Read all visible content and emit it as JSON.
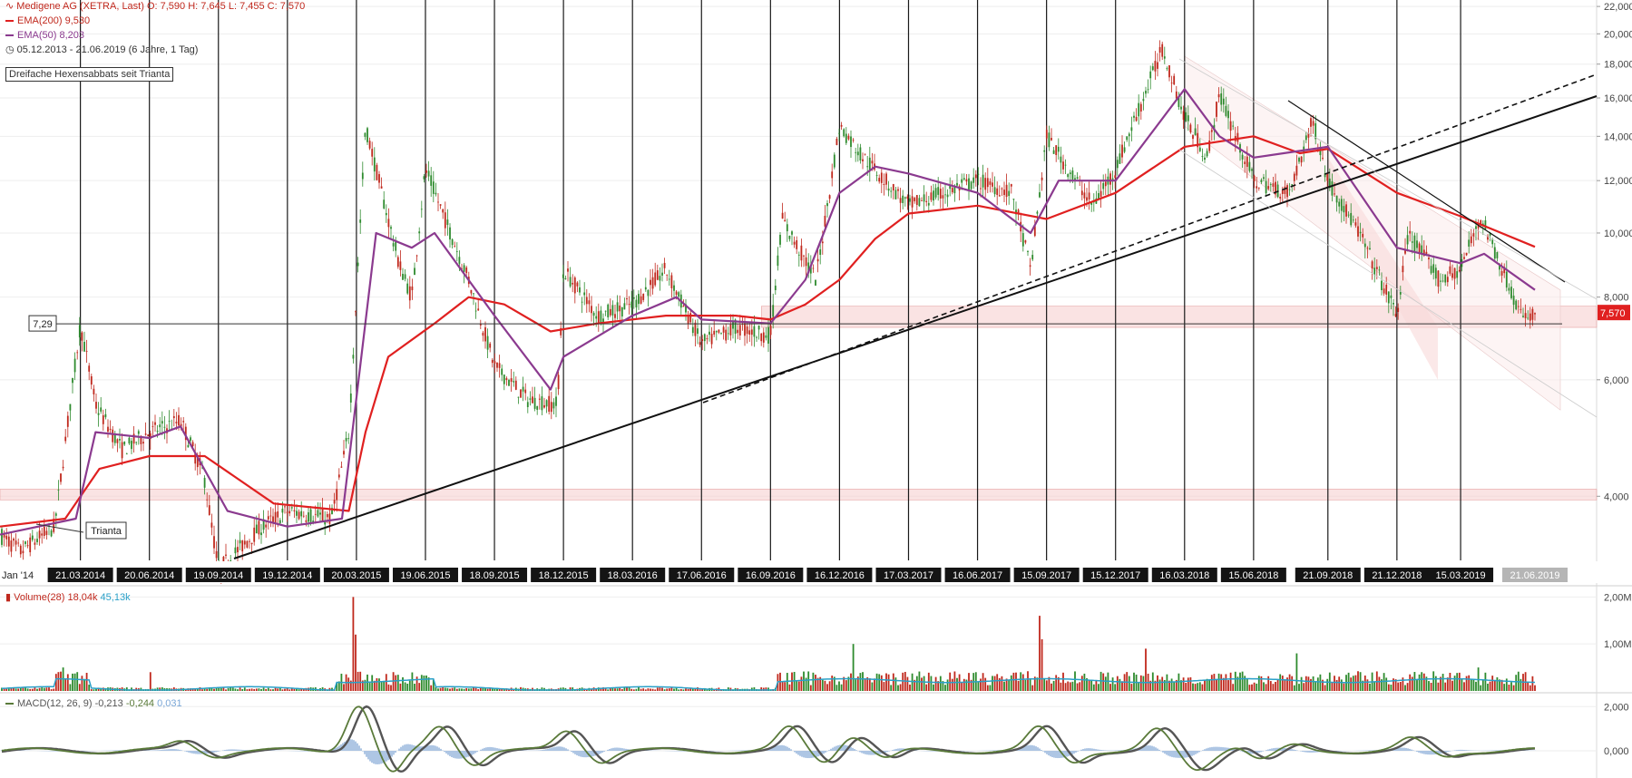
{
  "header": {
    "instrument": "Medigene AG (XETRA, Last)",
    "ohlc": "O: 7,590  H: 7,645  L: 7,455  C: 7,570",
    "ema200_label": "EMA(200)",
    "ema200_value": "9,530",
    "ema50_label": "EMA(50)",
    "ema50_value": "8,203",
    "range": "05.12.2013 - 21.06.2019",
    "range_note": "(6 Jahre, 1 Tag)"
  },
  "annotation": "Dreifache Hexensabbats seit Trianta",
  "trianta_label": "Trianta",
  "level_label": "7,29",
  "last_price_label": "7,570",
  "colors": {
    "ema200": "#e02020",
    "ema50": "#8b3a8f",
    "up": "#2e8b2e",
    "down": "#c0281d",
    "zone": "#f6cccc",
    "volume_avg": "#2aa0c8",
    "macd": "#5a7a3a",
    "signal": "#555555",
    "histogram": "#9ab8dd"
  },
  "chart_data": {
    "type": "line",
    "title": "Medigene AG (XETRA, Last)",
    "y_axis": {
      "scale": "log",
      "ticks": [
        "22,000",
        "20,000",
        "18,000",
        "16,000",
        "14,000",
        "12,000",
        "10,000",
        "8,000",
        "6,000",
        "4,000"
      ],
      "tick_values": [
        22,
        20,
        18,
        16,
        14,
        12,
        10,
        8,
        6,
        4
      ],
      "ylim": [
        3.2,
        22.5
      ]
    },
    "x_axis": {
      "first_label": "Jan '14",
      "last_label": "21.06.2019",
      "dates": [
        "21.03.2014",
        "20.06.2014",
        "19.09.2014",
        "19.12.2014",
        "20.03.2015",
        "19.06.2015",
        "18.09.2015",
        "18.12.2015",
        "18.03.2016",
        "17.06.2016",
        "16.09.2016",
        "16.12.2016",
        "17.03.2017",
        "16.06.2017",
        "15.09.2017",
        "15.12.2017",
        "16.03.2018",
        "15.06.2018",
        "21.09.2018",
        "21.12.2018",
        "15.03.2019"
      ]
    },
    "price_points": [
      [
        "05.12.2013",
        3.5
      ],
      [
        "01.01.2014",
        3.3
      ],
      [
        "15.02.2014",
        3.6
      ],
      [
        "21.03.2014",
        7.29
      ],
      [
        "10.04.2014",
        5.5
      ],
      [
        "15.05.2014",
        4.7
      ],
      [
        "20.06.2014",
        5.0
      ],
      [
        "31.07.2014",
        5.2
      ],
      [
        "31.08.2014",
        4.3
      ],
      [
        "19.09.2014",
        3.1
      ],
      [
        "15.11.2014",
        3.6
      ],
      [
        "19.12.2014",
        3.8
      ],
      [
        "15.02.2015",
        3.7
      ],
      [
        "10.03.2015",
        5.0
      ],
      [
        "01.04.2015",
        14.5
      ],
      [
        "15.05.2015",
        9.0
      ],
      [
        "01.06.2015",
        8.0
      ],
      [
        "19.06.2015",
        12.5
      ],
      [
        "15.08.2015",
        8.5
      ],
      [
        "18.09.2015",
        6.3
      ],
      [
        "01.11.2015",
        5.6
      ],
      [
        "10.12.2015",
        5.5
      ],
      [
        "18.12.2015",
        8.8
      ],
      [
        "01.02.2016",
        7.5
      ],
      [
        "18.03.2016",
        7.8
      ],
      [
        "01.05.2016",
        8.8
      ],
      [
        "17.06.2016",
        6.8
      ],
      [
        "01.08.2016",
        7.2
      ],
      [
        "16.09.2016",
        7.0
      ],
      [
        "01.10.2016",
        10.5
      ],
      [
        "15.11.2016",
        8.5
      ],
      [
        "16.12.2016",
        14.5
      ],
      [
        "17.01.2017",
        13.0
      ],
      [
        "17.03.2017",
        11.0
      ],
      [
        "16.06.2017",
        12.0
      ],
      [
        "01.08.2017",
        11.5
      ],
      [
        "25.08.2017",
        8.8
      ],
      [
        "15.09.2017",
        14.0
      ],
      [
        "15.11.2017",
        11.0
      ],
      [
        "15.12.2017",
        12.5
      ],
      [
        "15.02.2018",
        19.0
      ],
      [
        "16.03.2018",
        15.0
      ],
      [
        "15.04.2018",
        13.0
      ],
      [
        "01.05.2018",
        16.2
      ],
      [
        "15.06.2018",
        12.0
      ],
      [
        "01.08.2018",
        11.5
      ],
      [
        "01.09.2018",
        14.8
      ],
      [
        "21.09.2018",
        12.0
      ],
      [
        "01.11.2018",
        10.0
      ],
      [
        "21.12.2018",
        7.5
      ],
      [
        "05.01.2019",
        10.0
      ],
      [
        "15.02.2019",
        8.5
      ],
      [
        "15.03.2019",
        8.8
      ],
      [
        "10.04.2019",
        10.6
      ],
      [
        "15.05.2019",
        8.5
      ],
      [
        "05.06.2019",
        7.4
      ],
      [
        "21.06.2019",
        7.57
      ]
    ],
    "series": [
      {
        "name": "EMA(200)",
        "points": [
          [
            "05.12.2013",
            3.6
          ],
          [
            "01.03.2014",
            3.7
          ],
          [
            "15.04.2014",
            4.4
          ],
          [
            "20.06.2014",
            4.6
          ],
          [
            "01.09.2014",
            4.6
          ],
          [
            "01.12.2014",
            3.9
          ],
          [
            "10.03.2015",
            3.8
          ],
          [
            "01.04.2015",
            5.0
          ],
          [
            "01.05.2015",
            6.5
          ],
          [
            "01.07.2015",
            7.3
          ],
          [
            "15.08.2015",
            8.0
          ],
          [
            "01.10.2015",
            7.8
          ],
          [
            "01.12.2015",
            7.1
          ],
          [
            "01.02.2016",
            7.3
          ],
          [
            "01.05.2016",
            7.5
          ],
          [
            "01.08.2016",
            7.5
          ],
          [
            "16.09.2016",
            7.4
          ],
          [
            "01.11.2016",
            7.8
          ],
          [
            "16.12.2016",
            8.5
          ],
          [
            "01.02.2017",
            9.8
          ],
          [
            "17.03.2017",
            10.7
          ],
          [
            "16.06.2017",
            11.0
          ],
          [
            "15.09.2017",
            10.5
          ],
          [
            "15.12.2017",
            11.5
          ],
          [
            "16.03.2018",
            13.5
          ],
          [
            "15.06.2018",
            14.0
          ],
          [
            "15.08.2018",
            13.2
          ],
          [
            "21.09.2018",
            13.4
          ],
          [
            "21.12.2018",
            11.5
          ],
          [
            "15.03.2019",
            10.6
          ],
          [
            "21.06.2019",
            9.53
          ]
        ]
      },
      {
        "name": "EMA(50)",
        "points": [
          [
            "05.12.2013",
            3.5
          ],
          [
            "15.03.2014",
            3.7
          ],
          [
            "10.04.2014",
            5.0
          ],
          [
            "20.06.2014",
            4.9
          ],
          [
            "31.07.2014",
            5.1
          ],
          [
            "01.10.2014",
            3.8
          ],
          [
            "19.12.2014",
            3.6
          ],
          [
            "01.03.2015",
            3.7
          ],
          [
            "15.04.2015",
            10.0
          ],
          [
            "01.06.2015",
            9.5
          ],
          [
            "01.07.2015",
            10.0
          ],
          [
            "18.09.2015",
            7.5
          ],
          [
            "01.12.2015",
            5.8
          ],
          [
            "18.12.2015",
            6.5
          ],
          [
            "18.03.2016",
            7.5
          ],
          [
            "15.05.2016",
            8.0
          ],
          [
            "17.06.2016",
            7.4
          ],
          [
            "16.09.2016",
            7.3
          ],
          [
            "01.11.2016",
            8.5
          ],
          [
            "16.12.2016",
            11.5
          ],
          [
            "01.02.2017",
            12.6
          ],
          [
            "17.03.2017",
            12.3
          ],
          [
            "16.06.2017",
            11.5
          ],
          [
            "25.08.2017",
            10.0
          ],
          [
            "01.10.2017",
            12.0
          ],
          [
            "15.12.2017",
            12.0
          ],
          [
            "16.03.2018",
            16.5
          ],
          [
            "01.05.2018",
            14.0
          ],
          [
            "15.06.2018",
            13.0
          ],
          [
            "21.09.2018",
            13.5
          ],
          [
            "21.12.2018",
            9.5
          ],
          [
            "15.03.2019",
            9.0
          ],
          [
            "15.04.2019",
            9.3
          ],
          [
            "21.06.2019",
            8.203
          ]
        ]
      }
    ],
    "horizontal_level": 7.29,
    "zones": [
      [
        7.2,
        7.75
      ],
      [
        3.95,
        4.1
      ]
    ],
    "volume": {
      "label": "Volume(28)",
      "value": "18,04k",
      "average": "45,13k",
      "ticks": [
        "2,00M",
        "1,00M"
      ],
      "tick_values": [
        2000000,
        1000000
      ]
    },
    "macd": {
      "label": "MACD(12, 26, 9)",
      "macd": "-0,213",
      "signal": "-0,244",
      "histogram": "0,031",
      "ticks": [
        "2,000",
        "0,000"
      ],
      "tick_values": [
        2,
        0
      ]
    }
  }
}
